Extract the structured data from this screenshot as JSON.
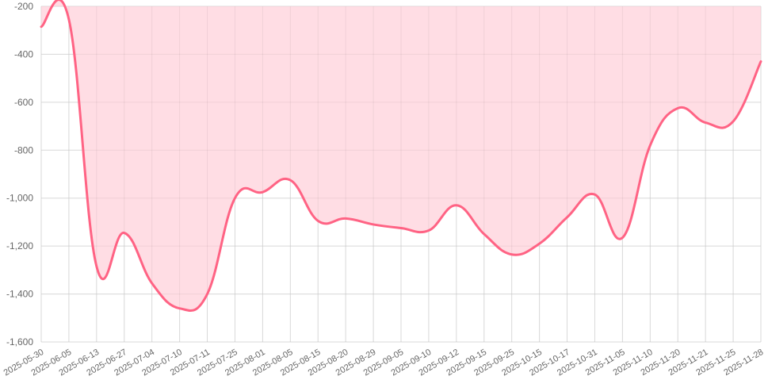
{
  "chart_data": {
    "type": "area",
    "title": "",
    "xlabel": "",
    "ylabel": "",
    "ylim": [
      -1600,
      -200
    ],
    "yticks": [
      -200,
      -400,
      -600,
      -800,
      -1000,
      -1200,
      -1400,
      -1600
    ],
    "ytick_labels": [
      "-200",
      "-400",
      "-600",
      "-800",
      "-1,000",
      "-1,200",
      "-1,400",
      "-1,600"
    ],
    "grid": true,
    "legend": "none",
    "colors": {
      "line": "#ff6384",
      "fill": "#ffdde4"
    },
    "categories": [
      "2025-05-30",
      "2025-06-05",
      "2025-06-13",
      "2025-06-27",
      "2025-07-04",
      "2025-07-10",
      "2025-07-11",
      "2025-07-25",
      "2025-08-01",
      "2025-08-05",
      "2025-08-15",
      "2025-08-20",
      "2025-08-29",
      "2025-09-05",
      "2025-09-10",
      "2025-09-12",
      "2025-09-15",
      "2025-09-25",
      "2025-10-15",
      "2025-10-17",
      "2025-10-31",
      "2025-11-05",
      "2025-11-10",
      "2025-11-20",
      "2025-11-21",
      "2025-11-25",
      "2025-11-28"
    ],
    "values": [
      -285,
      -255,
      -1285,
      -1145,
      -1355,
      -1460,
      -1400,
      -1000,
      -975,
      -925,
      -1095,
      -1085,
      -1110,
      -1125,
      -1135,
      -1030,
      -1150,
      -1235,
      -1190,
      -1080,
      -985,
      -1165,
      -780,
      -625,
      -685,
      -680,
      -430
    ]
  }
}
